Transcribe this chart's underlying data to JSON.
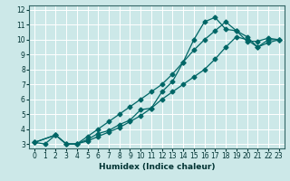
{
  "title": "",
  "xlabel": "Humidex (Indice chaleur)",
  "ylabel": "",
  "bg_color": "#cce8e8",
  "grid_color": "#ffffff",
  "line_color": "#006666",
  "xlim": [
    -0.5,
    23.5
  ],
  "ylim": [
    2.7,
    12.3
  ],
  "xticks": [
    0,
    1,
    2,
    3,
    4,
    5,
    6,
    7,
    8,
    9,
    10,
    11,
    12,
    13,
    14,
    15,
    16,
    17,
    18,
    19,
    20,
    21,
    22,
    23
  ],
  "yticks": [
    3,
    4,
    5,
    6,
    7,
    8,
    9,
    10,
    11,
    12
  ],
  "line1_x": [
    0,
    1,
    2,
    3,
    4,
    5,
    6,
    7,
    8,
    9,
    10,
    11,
    12,
    13,
    14,
    15,
    16,
    17,
    18,
    19,
    20,
    21,
    22,
    23
  ],
  "line1_y": [
    3.1,
    3.0,
    3.6,
    3.0,
    3.0,
    3.3,
    3.7,
    3.9,
    4.3,
    4.6,
    5.3,
    5.4,
    6.5,
    7.2,
    8.5,
    10.0,
    11.2,
    11.5,
    10.7,
    10.6,
    9.9,
    9.9,
    10.1,
    10.0
  ],
  "line2_x": [
    0,
    2,
    3,
    4,
    5,
    6,
    7,
    8,
    9,
    10,
    11,
    12,
    13,
    14,
    15,
    16,
    17,
    18,
    19,
    20,
    21,
    22,
    23
  ],
  "line2_y": [
    3.1,
    3.6,
    3.0,
    3.0,
    3.5,
    4.0,
    4.5,
    5.0,
    5.5,
    6.0,
    6.5,
    7.0,
    7.7,
    8.5,
    9.3,
    10.0,
    10.6,
    11.2,
    10.6,
    10.2,
    9.5,
    10.0,
    10.0
  ],
  "line3_x": [
    0,
    2,
    3,
    4,
    5,
    6,
    7,
    8,
    9,
    10,
    11,
    12,
    13,
    14,
    15,
    16,
    17,
    18,
    19,
    20,
    21,
    22,
    23
  ],
  "line3_y": [
    3.1,
    3.6,
    3.0,
    3.0,
    3.2,
    3.5,
    3.8,
    4.1,
    4.5,
    4.9,
    5.4,
    6.0,
    6.5,
    7.0,
    7.5,
    8.0,
    8.7,
    9.5,
    10.2,
    10.0,
    9.5,
    9.8,
    10.0
  ]
}
